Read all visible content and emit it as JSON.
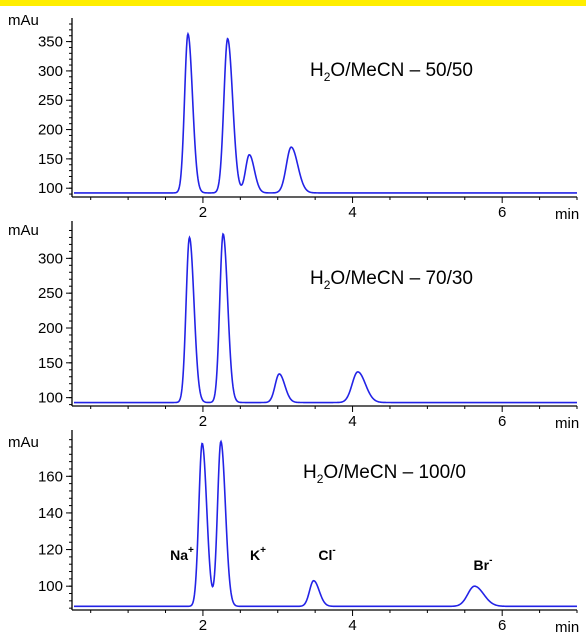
{
  "chart_data": [
    {
      "type": "line",
      "y_unit_label": "mAu",
      "x_unit_label": "min",
      "xlim": [
        0.25,
        7.0
      ],
      "ylim": [
        85,
        380
      ],
      "x_ticks": [
        "2",
        "4",
        "6"
      ],
      "y_ticks": [
        "100",
        "150",
        "200",
        "250",
        "300",
        "350"
      ],
      "condition": {
        "main": "H",
        "sub": "2",
        "rest": "O/MeCN – 50/50"
      },
      "color": "#2323e6",
      "baseline": 92,
      "peaks": [
        {
          "t": 1.8,
          "height": 363,
          "width": 0.045
        },
        {
          "t": 2.33,
          "height": 355,
          "width": 0.05
        },
        {
          "t": 2.62,
          "height": 157,
          "width": 0.05
        },
        {
          "t": 3.18,
          "height": 170,
          "width": 0.065
        }
      ]
    },
    {
      "type": "line",
      "y_unit_label": "mAu",
      "x_unit_label": "min",
      "xlim": [
        0.25,
        7.0
      ],
      "ylim": [
        88,
        345
      ],
      "x_ticks": [
        "2",
        "4",
        "6"
      ],
      "y_ticks": [
        "100",
        "150",
        "200",
        "250",
        "300"
      ],
      "condition": {
        "main": "H",
        "sub": "2",
        "rest": "O/MeCN – 70/30"
      },
      "color": "#2323e6",
      "baseline": 93,
      "peaks": [
        {
          "t": 1.82,
          "height": 330,
          "width": 0.045
        },
        {
          "t": 2.27,
          "height": 335,
          "width": 0.045
        },
        {
          "t": 3.02,
          "height": 134,
          "width": 0.055
        },
        {
          "t": 4.07,
          "height": 137,
          "width": 0.075
        }
      ]
    },
    {
      "type": "line",
      "y_unit_label": "mAu",
      "x_unit_label": "min",
      "xlim": [
        0.25,
        7.0
      ],
      "ylim": [
        87,
        182
      ],
      "x_ticks": [
        "2",
        "4",
        "6"
      ],
      "y_ticks": [
        "100",
        "120",
        "140",
        "160"
      ],
      "condition": {
        "main": "H",
        "sub": "2",
        "rest": "O/MeCN – 100/0"
      },
      "color": "#2323e6",
      "baseline": 89,
      "peaks": [
        {
          "t": 1.99,
          "height": 178,
          "width": 0.045
        },
        {
          "t": 2.24,
          "height": 179,
          "width": 0.045
        },
        {
          "t": 3.48,
          "height": 103,
          "width": 0.055
        },
        {
          "t": 5.63,
          "height": 100,
          "width": 0.09
        }
      ],
      "ion_labels": [
        {
          "base": "Na",
          "sup": "+"
        },
        {
          "base": "K",
          "sup": "+"
        },
        {
          "base": "Cl",
          "sup": "-"
        },
        {
          "base": "Br",
          "sup": "-"
        }
      ]
    }
  ]
}
